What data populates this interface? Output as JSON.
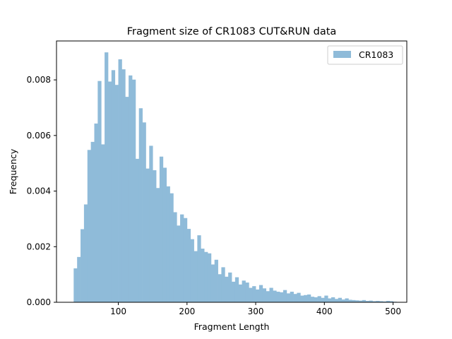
{
  "chart_data": {
    "type": "bar",
    "title": "Fragment size of CR1083 CUT&RUN data",
    "xlabel": "Fragment Length",
    "ylabel": "Frequency",
    "xlim": [
      10,
      520
    ],
    "ylim": [
      0,
      0.0094
    ],
    "xticks": [
      100,
      200,
      300,
      400,
      500
    ],
    "xtick_labels": [
      "100",
      "200",
      "300",
      "400",
      "500"
    ],
    "yticks": [
      0,
      0.002,
      0.004,
      0.006,
      0.008
    ],
    "ytick_labels": [
      "0.000",
      "0.002",
      "0.004",
      "0.006",
      "0.008"
    ],
    "grid": false,
    "legend": "top-right",
    "bin_start": 35,
    "bin_width": 5,
    "series": [
      {
        "name": "CR1083",
        "color": "#8fbbd9",
        "values": [
          0.00122,
          0.00163,
          0.00263,
          0.00352,
          0.00548,
          0.00577,
          0.00643,
          0.00796,
          0.00568,
          0.00899,
          0.00794,
          0.00835,
          0.00782,
          0.00874,
          0.00838,
          0.00739,
          0.00816,
          0.00801,
          0.00516,
          0.00698,
          0.00647,
          0.00481,
          0.00563,
          0.00475,
          0.00411,
          0.00524,
          0.00484,
          0.00417,
          0.00392,
          0.00324,
          0.00276,
          0.00316,
          0.00303,
          0.00264,
          0.00227,
          0.00184,
          0.00241,
          0.00193,
          0.00181,
          0.00176,
          0.00136,
          0.00153,
          0.00101,
          0.00126,
          0.00092,
          0.00107,
          0.00074,
          0.0009,
          0.00064,
          0.00078,
          0.00071,
          0.00052,
          0.00058,
          0.00046,
          0.00062,
          0.0005,
          0.0004,
          0.00052,
          0.00042,
          0.00038,
          0.00036,
          0.00044,
          0.00032,
          0.00038,
          0.0003,
          0.00034,
          0.00024,
          0.00026,
          0.00028,
          0.0002,
          0.00018,
          0.00022,
          0.00016,
          0.00024,
          0.00014,
          0.00018,
          0.00012,
          0.00016,
          0.0001,
          0.00014,
          9e-05,
          8e-05,
          7e-05,
          6e-05,
          8e-05,
          5e-05,
          6e-05,
          4e-05,
          5e-05,
          4e-05,
          3e-05,
          5e-05,
          4e-05,
          2e-05
        ]
      }
    ]
  }
}
